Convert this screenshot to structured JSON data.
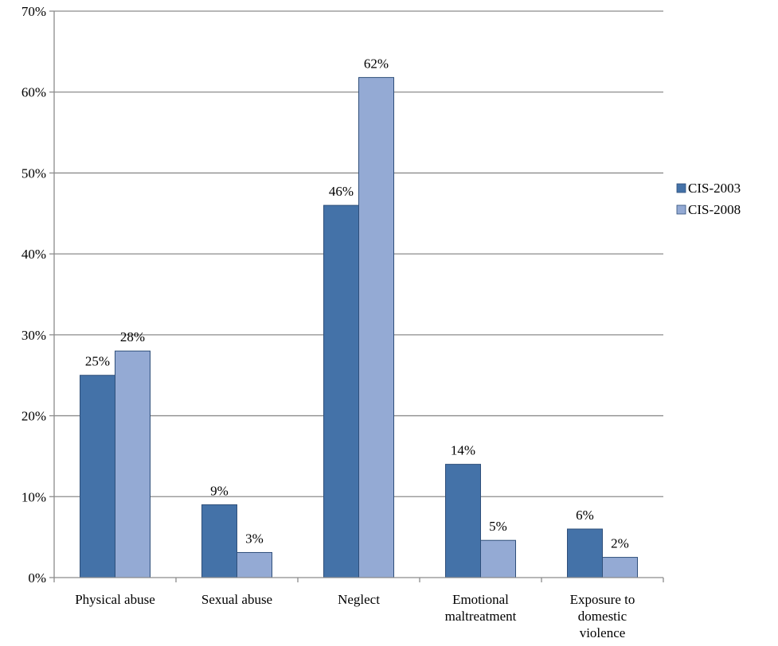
{
  "chart_data": {
    "type": "bar",
    "categories": [
      "Physical abuse",
      "Sexual abuse",
      "Neglect",
      "Emotional maltreatment",
      "Exposure to domestic violence"
    ],
    "category_lines": [
      [
        "Physical abuse"
      ],
      [
        "Sexual abuse"
      ],
      [
        "Neglect"
      ],
      [
        "Emotional",
        "maltreatment"
      ],
      [
        "Exposure to",
        "domestic",
        "violence"
      ]
    ],
    "series": [
      {
        "name": "CIS-2003",
        "values": [
          25,
          9,
          46,
          14,
          6
        ],
        "labels": [
          "25%",
          "9%",
          "46%",
          "14%",
          "6%"
        ],
        "color": "#4472A8"
      },
      {
        "name": "CIS-2008",
        "values": [
          28,
          3.1,
          61.8,
          4.6,
          2.5
        ],
        "labels": [
          "28%",
          "3%",
          "62%",
          "5%",
          "2%"
        ],
        "color": "#94AAD4"
      }
    ],
    "ylim": [
      0,
      70
    ],
    "yticks": [
      0,
      10,
      20,
      30,
      40,
      50,
      60,
      70
    ],
    "ytick_labels": [
      "0%",
      "10%",
      "20%",
      "30%",
      "40%",
      "50%",
      "60%",
      "70%"
    ],
    "grid": true,
    "legend_position": "right",
    "title": "",
    "xlabel": "",
    "ylabel": ""
  }
}
